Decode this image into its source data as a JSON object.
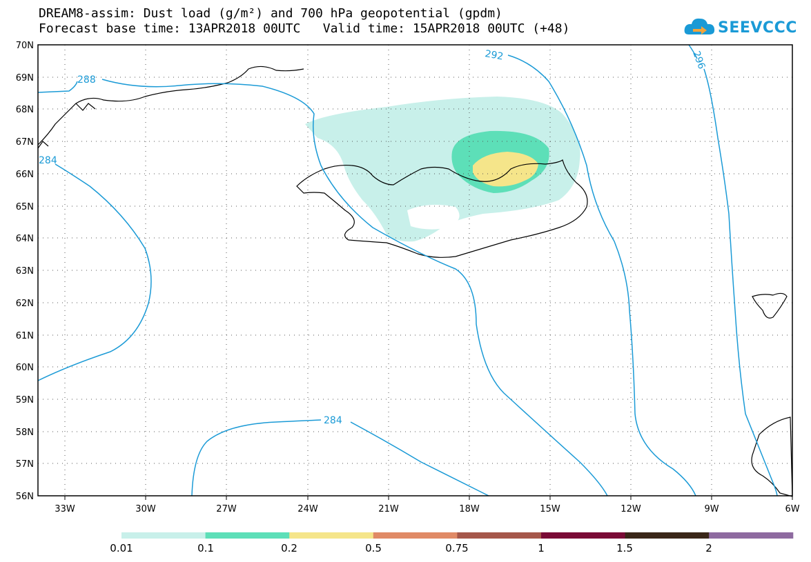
{
  "title": {
    "line1": "DREAM8-assim: Dust load (g/m²) and 700 hPa geopotential (gpdm)",
    "line2": "Forecast base time: 13APR2018 00UTC   Valid time: 15APR2018 00UTC (+48)"
  },
  "logo": {
    "text": "SEEVCCC",
    "icon": "cloud-logo-icon"
  },
  "map": {
    "lat_labels": [
      "70N",
      "69N",
      "68N",
      "67N",
      "66N",
      "65N",
      "64N",
      "63N",
      "62N",
      "61N",
      "60N",
      "59N",
      "58N",
      "57N",
      "56N"
    ],
    "lon_labels": [
      "33W",
      "30W",
      "27W",
      "24W",
      "21W",
      "18W",
      "15W",
      "12W",
      "9W",
      "6W"
    ],
    "contour_labels": [
      "288",
      "292",
      "296",
      "284",
      "284"
    ],
    "contour_color": "#1a9ad6",
    "region": "Iceland"
  },
  "colorbar": {
    "labels": [
      "0.01",
      "0.1",
      "0.2",
      "0.5",
      "0.75",
      "1",
      "1.5",
      "2"
    ],
    "colors": [
      "#c8f0ea",
      "#5ddfb8",
      "#f5e58a",
      "#e08a66",
      "#a5574a",
      "#7a0a36",
      "#3a2618",
      "#8e6aa0"
    ]
  }
}
